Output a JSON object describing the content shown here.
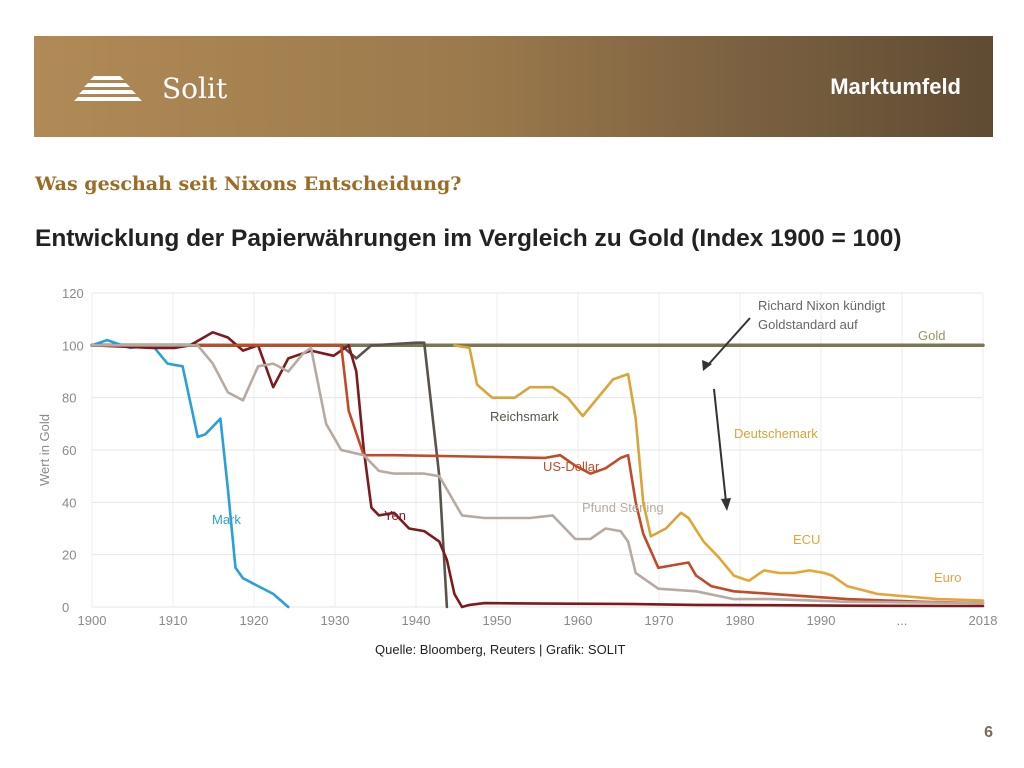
{
  "header": {
    "brand": "Solit",
    "section": "Marktumfeld"
  },
  "subtitle": "Was geschah seit Nixons Entscheidung?",
  "title": "Entwicklung der Papierwährungen im Vergleich zu Gold (Index 1900 = 100)",
  "source": "Quelle: Bloomberg, Reuters | Grafik: SOLIT",
  "page_number": "6",
  "chart_data": {
    "type": "line",
    "ylabel": "Wert in Gold",
    "ylim": [
      0,
      120
    ],
    "yticks": [
      0,
      20,
      40,
      60,
      80,
      100,
      120
    ],
    "xticks": [
      "1900",
      "1910",
      "1920",
      "1930",
      "1940",
      "1950",
      "1960",
      "1970",
      "1980",
      "1990",
      "...",
      "2018"
    ],
    "grid": true,
    "annotation": {
      "text_line1": "Richard Nixon kündigt",
      "text_line2": "Goldstandard auf",
      "x": 1971,
      "y": 89
    },
    "series": [
      {
        "name": "Gold",
        "color": "#7b7753",
        "points": [
          [
            1900,
            100
          ],
          [
            2018,
            100
          ]
        ]
      },
      {
        "name": "Mark",
        "color": "#29a0d8",
        "points": [
          [
            1900,
            100
          ],
          [
            1902,
            102
          ],
          [
            1905,
            99
          ],
          [
            1908,
            100
          ],
          [
            1910,
            93
          ],
          [
            1912,
            92
          ],
          [
            1914,
            65
          ],
          [
            1915,
            66
          ],
          [
            1917,
            72
          ],
          [
            1918,
            45
          ],
          [
            1919,
            15
          ],
          [
            1920,
            11
          ],
          [
            1922,
            8
          ],
          [
            1924,
            5
          ],
          [
            1926,
            0
          ]
        ]
      },
      {
        "name": "Reichsmark",
        "color": "#5a534c",
        "points": [
          [
            1900,
            100
          ],
          [
            1933,
            100
          ],
          [
            1935,
            95
          ],
          [
            1937,
            100
          ],
          [
            1943,
            101
          ],
          [
            1944,
            101
          ],
          [
            1946,
            50
          ],
          [
            1947,
            0
          ]
        ]
      },
      {
        "name": "Yen",
        "color": "#7e1a1e",
        "points": [
          [
            1900,
            100
          ],
          [
            1908,
            99
          ],
          [
            1911,
            99
          ],
          [
            1913,
            100
          ],
          [
            1916,
            105
          ],
          [
            1918,
            103
          ],
          [
            1920,
            98
          ],
          [
            1922,
            100
          ],
          [
            1924,
            84
          ],
          [
            1926,
            95
          ],
          [
            1928,
            97
          ],
          [
            1929,
            98
          ],
          [
            1932,
            96
          ],
          [
            1934,
            100
          ],
          [
            1935,
            90
          ],
          [
            1936,
            60
          ],
          [
            1937,
            38
          ],
          [
            1938,
            35
          ],
          [
            1940,
            36
          ],
          [
            1942,
            30
          ],
          [
            1944,
            29
          ],
          [
            1946,
            25
          ],
          [
            1947,
            18
          ],
          [
            1948,
            5
          ],
          [
            1949,
            0
          ],
          [
            1950,
            0.8
          ],
          [
            1952,
            1.5
          ],
          [
            1960,
            1.3
          ],
          [
            1970,
            1.2
          ],
          [
            1980,
            0.8
          ],
          [
            1990,
            0.7
          ],
          [
            2000,
            0.5
          ],
          [
            2018,
            0.4
          ]
        ]
      },
      {
        "name": "US-Dollar",
        "color": "#c14a29",
        "points": [
          [
            1900,
            100
          ],
          [
            1933,
            100
          ],
          [
            1934,
            75
          ],
          [
            1936,
            58
          ],
          [
            1940,
            58
          ],
          [
            1950,
            57.5
          ],
          [
            1960,
            57
          ],
          [
            1962,
            58
          ],
          [
            1964,
            54
          ],
          [
            1966,
            51
          ],
          [
            1968,
            53
          ],
          [
            1970,
            57
          ],
          [
            1971,
            58
          ],
          [
            1972,
            40
          ],
          [
            1973,
            28
          ],
          [
            1975,
            15
          ],
          [
            1977,
            16
          ],
          [
            1979,
            17
          ],
          [
            1980,
            12
          ],
          [
            1982,
            8
          ],
          [
            1985,
            6
          ],
          [
            1990,
            5
          ],
          [
            2000,
            3
          ],
          [
            2010,
            2
          ],
          [
            2018,
            1.5
          ]
        ]
      },
      {
        "name": "Pfund Sterling",
        "color": "#b7aba1",
        "points": [
          [
            1900,
            100
          ],
          [
            1914,
            100
          ],
          [
            1916,
            93
          ],
          [
            1918,
            82
          ],
          [
            1920,
            79
          ],
          [
            1922,
            92
          ],
          [
            1924,
            93
          ],
          [
            1926,
            90
          ],
          [
            1928,
            97
          ],
          [
            1929,
            99
          ],
          [
            1931,
            70
          ],
          [
            1933,
            60
          ],
          [
            1936,
            58
          ],
          [
            1938,
            52
          ],
          [
            1940,
            51
          ],
          [
            1944,
            51
          ],
          [
            1946,
            50
          ],
          [
            1949,
            35
          ],
          [
            1952,
            34
          ],
          [
            1958,
            34
          ],
          [
            1961,
            35
          ],
          [
            1964,
            26
          ],
          [
            1966,
            26
          ],
          [
            1968,
            30
          ],
          [
            1970,
            29
          ],
          [
            1971,
            25
          ],
          [
            1972,
            13
          ],
          [
            1975,
            7
          ],
          [
            1980,
            6
          ],
          [
            1985,
            3
          ],
          [
            1990,
            3
          ],
          [
            2000,
            2
          ],
          [
            2018,
            1.5
          ]
        ]
      },
      {
        "name": "Deutschemark",
        "color": "#d9a439",
        "points": [
          [
            1948,
            100
          ],
          [
            1950,
            99
          ],
          [
            1951,
            85
          ],
          [
            1953,
            80
          ],
          [
            1956,
            80
          ],
          [
            1958,
            84
          ],
          [
            1961,
            84
          ],
          [
            1963,
            80
          ],
          [
            1965,
            73
          ],
          [
            1967,
            80
          ],
          [
            1969,
            87
          ],
          [
            1971,
            89
          ],
          [
            1972,
            72
          ],
          [
            1973,
            40
          ],
          [
            1974,
            27
          ],
          [
            1976,
            30
          ],
          [
            1977,
            33
          ],
          [
            1978,
            36
          ],
          [
            1979,
            34
          ]
        ]
      },
      {
        "name": "ECU",
        "color": "#e4a62e",
        "points": [
          [
            1979,
            34
          ],
          [
            1981,
            25
          ],
          [
            1983,
            19
          ],
          [
            1985,
            12
          ],
          [
            1987,
            10
          ],
          [
            1989,
            14
          ],
          [
            1991,
            13
          ],
          [
            1993,
            13
          ],
          [
            1995,
            14
          ],
          [
            1997,
            13
          ],
          [
            1998,
            12
          ]
        ]
      },
      {
        "name": "Euro",
        "color": "#e6a33a",
        "points": [
          [
            1998,
            12
          ],
          [
            2000,
            8
          ],
          [
            2004,
            5
          ],
          [
            2008,
            4
          ],
          [
            2012,
            3
          ],
          [
            2018,
            2.5
          ]
        ]
      }
    ]
  }
}
